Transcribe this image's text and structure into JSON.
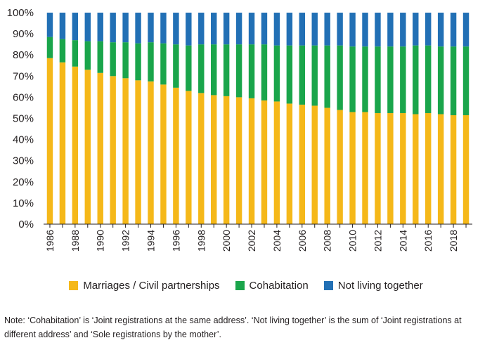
{
  "chart_data": {
    "type": "bar",
    "stacked": true,
    "categories": [
      "1986",
      "1987",
      "1988",
      "1989",
      "1990",
      "1991",
      "1992",
      "1993",
      "1994",
      "1995",
      "1996",
      "1997",
      "1998",
      "1999",
      "2000",
      "2001",
      "2002",
      "2003",
      "2004",
      "2005",
      "2006",
      "2007",
      "2008",
      "2009",
      "2010",
      "2011",
      "2012",
      "2013",
      "2014",
      "2015",
      "2016",
      "2017",
      "2018",
      "2019"
    ],
    "x_tick_labels": [
      "1986",
      "1988",
      "1990",
      "1992",
      "1994",
      "1996",
      "1998",
      "2000",
      "2002",
      "2004",
      "2006",
      "2008",
      "2010",
      "2012",
      "2014",
      "2016",
      "2018"
    ],
    "y_tick_labels": [
      "0%",
      "10%",
      "20%",
      "30%",
      "40%",
      "50%",
      "60%",
      "70%",
      "80%",
      "90%",
      "100%"
    ],
    "ylim": [
      0,
      100
    ],
    "grid": false,
    "legend_position": "bottom",
    "series": [
      {
        "name": "Marriages / Civil partnerships",
        "color": "#f5b819",
        "values": [
          78.5,
          76.5,
          74.5,
          73.0,
          71.5,
          70.0,
          69.0,
          68.0,
          67.5,
          66.0,
          64.5,
          63.0,
          62.0,
          61.0,
          60.5,
          60.0,
          59.5,
          58.5,
          58.0,
          57.0,
          56.5,
          56.0,
          55.0,
          54.0,
          53.0,
          53.0,
          52.5,
          52.5,
          52.5,
          52.0,
          52.5,
          52.0,
          51.5,
          51.5
        ]
      },
      {
        "name": "Cohabitation",
        "color": "#1aa54b",
        "values": [
          10.0,
          11.0,
          12.5,
          13.5,
          15.0,
          16.0,
          17.0,
          17.5,
          18.5,
          19.5,
          20.5,
          21.5,
          23.0,
          24.0,
          24.5,
          25.0,
          25.5,
          26.5,
          26.5,
          27.5,
          28.0,
          28.5,
          29.5,
          30.5,
          31.0,
          31.0,
          31.5,
          31.5,
          31.5,
          32.5,
          32.0,
          32.0,
          32.5,
          32.5
        ]
      },
      {
        "name": "Not living together",
        "color": "#2270b5",
        "values": [
          11.5,
          12.5,
          13.0,
          13.5,
          13.5,
          14.0,
          14.0,
          14.5,
          14.0,
          14.5,
          15.0,
          15.5,
          15.0,
          15.0,
          15.0,
          15.0,
          15.0,
          15.0,
          15.5,
          15.5,
          15.5,
          15.5,
          15.5,
          15.5,
          16.0,
          16.0,
          16.0,
          16.0,
          16.0,
          15.5,
          15.5,
          16.0,
          16.0,
          16.0
        ]
      }
    ]
  },
  "note": "Note: ‘Cohabitation’ is ‘Joint registrations at the same address’. ‘Not living together’ is the sum of ‘Joint registrations at different address’ and ‘Sole registrations by the mother’."
}
